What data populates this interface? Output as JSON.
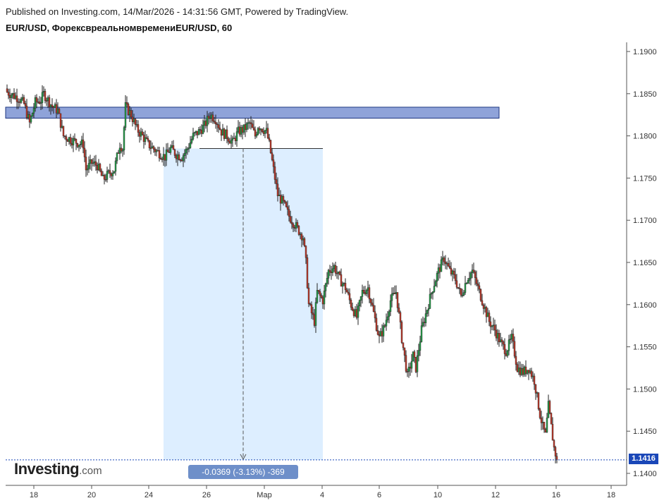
{
  "header": {
    "published": "Published on Investing.com, 14/Mar/2026 - 14:31:56 GMT, Powered by TradingView.",
    "symbol": "EUR/USD, ФорексвреальномвремениEUR/USD, 60"
  },
  "logo": {
    "brand": "Investing",
    "suffix": ".com"
  },
  "measure_label": "-0.0369 (-3.13%) -369",
  "last_price": "1.1416",
  "colors": {
    "up": "#26a04a",
    "down": "#c0392b",
    "zone": "#8fa3d9",
    "measure_bg": "#ddeeff",
    "last_line": "#1a47b8"
  },
  "chart_data": {
    "type": "candlestick",
    "title": "EUR/USD, ФорексвреальномвремениEUR/USD, 60",
    "ylim": [
      1.137,
      1.1905
    ],
    "yticks": [
      "1.1900",
      "1.1850",
      "1.1800",
      "1.1750",
      "1.1700",
      "1.1650",
      "1.1600",
      "1.1550",
      "1.1500",
      "1.1450",
      "1.1400"
    ],
    "xticks": [
      "18",
      "20",
      "24",
      "26",
      "Мар",
      "4",
      "6",
      "10",
      "12",
      "16",
      "18"
    ],
    "zone": {
      "top": 1.1834,
      "bottom": 1.1821
    },
    "measure": {
      "start": 1.1785,
      "end": 1.1416,
      "change": -0.0369,
      "pct": -3.13,
      "pips": -369
    },
    "last": 1.1416,
    "anchors": [
      [
        0,
        1.1852
      ],
      [
        8,
        1.1845
      ],
      [
        12,
        1.1838
      ],
      [
        16,
        1.1815
      ],
      [
        20,
        1.184
      ],
      [
        24,
        1.1842
      ],
      [
        26,
        1.185
      ],
      [
        32,
        1.1835
      ],
      [
        36,
        1.183
      ],
      [
        40,
        1.18
      ],
      [
        46,
        1.1795
      ],
      [
        50,
        1.1792
      ],
      [
        54,
        1.179
      ],
      [
        56,
        1.176
      ],
      [
        60,
        1.1768
      ],
      [
        64,
        1.1765
      ],
      [
        68,
        1.1748
      ],
      [
        72,
        1.1755
      ],
      [
        76,
        1.176
      ],
      [
        80,
        1.179
      ],
      [
        82,
        1.1785
      ],
      [
        84,
        1.1835
      ],
      [
        88,
        1.1825
      ],
      [
        92,
        1.1808
      ],
      [
        96,
        1.18
      ],
      [
        100,
        1.179
      ],
      [
        106,
        1.1782
      ],
      [
        112,
        1.1775
      ],
      [
        116,
        1.1785
      ],
      [
        120,
        1.1778
      ],
      [
        124,
        1.1775
      ],
      [
        128,
        1.1785
      ],
      [
        132,
        1.18
      ],
      [
        136,
        1.1805
      ],
      [
        140,
        1.1812
      ],
      [
        144,
        1.1825
      ],
      [
        148,
        1.182
      ],
      [
        152,
        1.1805
      ],
      [
        156,
        1.18
      ],
      [
        160,
        1.1792
      ],
      [
        164,
        1.1805
      ],
      [
        168,
        1.1808
      ],
      [
        172,
        1.1815
      ],
      [
        176,
        1.18
      ],
      [
        178,
        1.1812
      ],
      [
        180,
        1.181
      ],
      [
        184,
        1.1805
      ],
      [
        186,
        1.179
      ],
      [
        188,
        1.177
      ],
      [
        192,
        1.173
      ],
      [
        196,
        1.172
      ],
      [
        200,
        1.1705
      ],
      [
        204,
        1.1695
      ],
      [
        206,
        1.169
      ],
      [
        210,
        1.168
      ],
      [
        212,
        1.165
      ],
      [
        214,
        1.16
      ],
      [
        216,
        1.159
      ],
      [
        218,
        1.158
      ],
      [
        220,
        1.1615
      ],
      [
        224,
        1.1605
      ],
      [
        228,
        1.164
      ],
      [
        232,
        1.1645
      ],
      [
        236,
        1.163
      ],
      [
        240,
        1.162
      ],
      [
        244,
        1.16
      ],
      [
        248,
        1.1585
      ],
      [
        252,
        1.1615
      ],
      [
        256,
        1.162
      ],
      [
        260,
        1.159
      ],
      [
        264,
        1.156
      ],
      [
        268,
        1.1575
      ],
      [
        272,
        1.1605
      ],
      [
        276,
        1.1615
      ],
      [
        280,
        1.156
      ],
      [
        284,
        1.1515
      ],
      [
        288,
        1.154
      ],
      [
        290,
        1.1525
      ],
      [
        294,
        1.157
      ],
      [
        298,
        1.1595
      ],
      [
        302,
        1.162
      ],
      [
        306,
        1.164
      ],
      [
        310,
        1.1655
      ],
      [
        314,
        1.164
      ],
      [
        318,
        1.163
      ],
      [
        322,
        1.161
      ],
      [
        326,
        1.163
      ],
      [
        330,
        1.164
      ],
      [
        334,
        1.162
      ],
      [
        338,
        1.16
      ],
      [
        342,
        1.158
      ],
      [
        346,
        1.157
      ],
      [
        350,
        1.1555
      ],
      [
        354,
        1.1545
      ],
      [
        358,
        1.156
      ],
      [
        362,
        1.1525
      ],
      [
        366,
        1.152
      ],
      [
        370,
        1.1525
      ],
      [
        374,
        1.151
      ],
      [
        378,
        1.147
      ],
      [
        380,
        1.1455
      ],
      [
        382,
        1.1445
      ],
      [
        384,
        1.148
      ],
      [
        386,
        1.1455
      ],
      [
        388,
        1.143
      ],
      [
        390,
        1.1416
      ]
    ]
  }
}
